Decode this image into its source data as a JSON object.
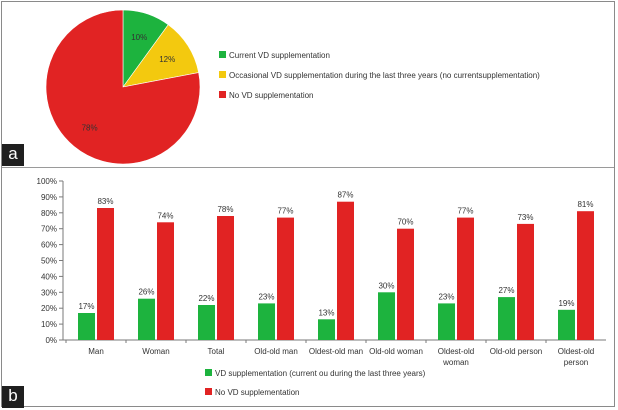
{
  "panels": {
    "a_label": "a",
    "b_label": "b"
  },
  "chart_data": [
    {
      "type": "pie",
      "categories": [
        "Current VD supplementation",
        "Occasional VD supplementation during the last three years (no currentsupplementation)",
        "No VD supplementation"
      ],
      "values": [
        10,
        12,
        78
      ],
      "value_labels": [
        "10%",
        "12%",
        "78%"
      ],
      "colors": [
        "#1db33e",
        "#f3c90f",
        "#e12323"
      ],
      "legend_position": "right"
    },
    {
      "type": "bar",
      "categories": [
        [
          "Man"
        ],
        [
          "Woman"
        ],
        [
          "Total"
        ],
        [
          "Old-old man"
        ],
        [
          "Oldest-old man"
        ],
        [
          "Old-old woman"
        ],
        [
          "Oldest-old",
          "woman"
        ],
        [
          "Old-old person"
        ],
        [
          "Oldest-old",
          "person"
        ]
      ],
      "series": [
        {
          "name": "VD supplementation (current ou during the last three years)",
          "values": [
            17,
            26,
            22,
            23,
            13,
            30,
            23,
            27,
            19
          ],
          "color": "#1db33e"
        },
        {
          "name": "No VD supplementation",
          "values": [
            83,
            74,
            78,
            77,
            87,
            70,
            77,
            73,
            81
          ],
          "color": "#e12323"
        }
      ],
      "ylim": [
        0,
        100
      ],
      "yticks": [
        "0%",
        "10%",
        "20%",
        "30%",
        "40%",
        "50%",
        "60%",
        "70%",
        "80%",
        "90%",
        "100%"
      ],
      "value_suffix": "%",
      "grid": false,
      "legend_position": "bottom"
    }
  ]
}
